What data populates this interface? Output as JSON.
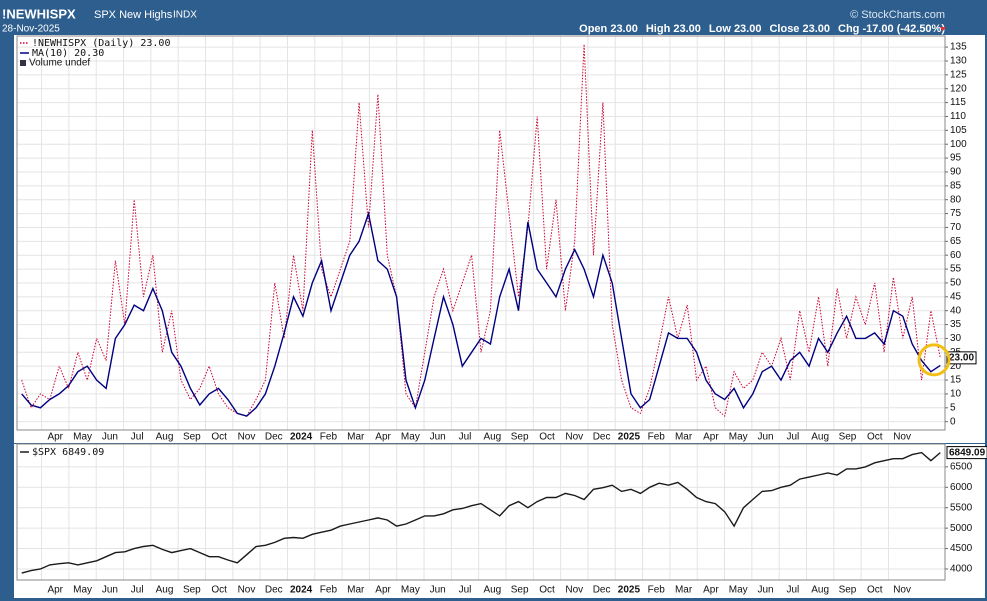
{
  "header": {
    "symbol": "!NEWHISPX",
    "name": "SPX New Highs",
    "exchange": "INDX",
    "date": "28-Nov-2025",
    "credit": "© StockCharts.com",
    "quote": [
      "Open 23.00",
      "High 23.00",
      "Low 23.00",
      "Close 23.00",
      "Chg -17.00 (-42.50%)"
    ]
  },
  "chart_data": [
    {
      "type": "line",
      "xtick_labels": [
        "Apr",
        "May",
        "Jun",
        "Jul",
        "Aug",
        "Sep",
        "Oct",
        "Nov",
        "Dec",
        "2024",
        "Feb",
        "Mar",
        "Apr",
        "May",
        "Jun",
        "Jul",
        "Aug",
        "Sep",
        "Oct",
        "Nov",
        "Dec",
        "2025",
        "Feb",
        "Mar",
        "Apr",
        "May",
        "Jun",
        "Jul",
        "Aug",
        "Sep",
        "Oct",
        "Nov"
      ],
      "ylim": [
        -3,
        139
      ],
      "yticks": [
        0,
        5,
        10,
        15,
        20,
        25,
        30,
        35,
        40,
        45,
        50,
        55,
        60,
        65,
        70,
        75,
        80,
        85,
        90,
        95,
        100,
        105,
        110,
        115,
        120,
        125,
        130,
        135
      ],
      "grid": true,
      "legend_extra": "Volume undef",
      "last_value_label": "23.00",
      "series": [
        {
          "name": "!NEWHISPX (Daily) 23.00",
          "color": "#cc0033",
          "style": "dotted",
          "values": [
            15,
            5,
            10,
            8,
            20,
            12,
            25,
            15,
            30,
            22,
            58,
            35,
            80,
            45,
            60,
            25,
            40,
            15,
            8,
            12,
            20,
            10,
            5,
            3,
            2,
            8,
            15,
            50,
            30,
            60,
            40,
            105,
            55,
            45,
            55,
            65,
            115,
            70,
            118,
            60,
            45,
            10,
            5,
            25,
            45,
            55,
            40,
            50,
            60,
            25,
            40,
            105,
            75,
            45,
            70,
            110,
            55,
            80,
            40,
            65,
            136,
            60,
            115,
            35,
            15,
            5,
            3,
            12,
            28,
            45,
            30,
            42,
            15,
            20,
            5,
            2,
            18,
            12,
            15,
            25,
            20,
            30,
            15,
            40,
            25,
            45,
            20,
            48,
            30,
            45,
            35,
            50,
            25,
            52,
            30,
            45,
            15,
            40,
            23
          ]
        },
        {
          "name": "MA(10) 20.30",
          "color": "#000080",
          "style": "solid",
          "values": [
            10,
            6,
            5,
            8,
            10,
            13,
            18,
            20,
            15,
            12,
            30,
            35,
            42,
            40,
            48,
            40,
            25,
            20,
            12,
            6,
            10,
            12,
            8,
            3,
            2,
            5,
            10,
            20,
            32,
            45,
            38,
            50,
            58,
            40,
            50,
            60,
            65,
            75,
            58,
            55,
            45,
            15,
            5,
            15,
            30,
            45,
            35,
            20,
            25,
            30,
            28,
            45,
            55,
            40,
            72,
            55,
            50,
            45,
            55,
            62,
            55,
            45,
            60,
            50,
            30,
            10,
            5,
            8,
            20,
            32,
            30,
            30,
            25,
            15,
            10,
            8,
            12,
            5,
            10,
            18,
            20,
            15,
            22,
            25,
            20,
            30,
            25,
            32,
            38,
            30,
            30,
            32,
            28,
            40,
            38,
            28,
            22,
            18,
            20.3
          ]
        }
      ]
    },
    {
      "type": "line",
      "xtick_labels": [
        "Apr",
        "May",
        "Jun",
        "Jul",
        "Aug",
        "Sep",
        "Oct",
        "Nov",
        "Dec",
        "2024",
        "Feb",
        "Mar",
        "Apr",
        "May",
        "Jun",
        "Jul",
        "Aug",
        "Sep",
        "Oct",
        "Nov",
        "Dec",
        "2025",
        "Feb",
        "Mar",
        "Apr",
        "May",
        "Jun",
        "Jul",
        "Aug",
        "Sep",
        "Oct",
        "Nov"
      ],
      "ylim": [
        3730,
        7060
      ],
      "yticks": [
        4000,
        4500,
        5000,
        5500,
        6000,
        6500
      ],
      "grid": true,
      "last_value_label": "6849.09",
      "series": [
        {
          "name": "$SPX 6849.09",
          "color": "#1a1a1a",
          "style": "solid",
          "values": [
            3900,
            3960,
            4000,
            4100,
            4130,
            4150,
            4100,
            4150,
            4200,
            4300,
            4400,
            4420,
            4500,
            4550,
            4580,
            4480,
            4400,
            4450,
            4500,
            4400,
            4300,
            4300,
            4220,
            4150,
            4350,
            4550,
            4580,
            4650,
            4750,
            4770,
            4750,
            4850,
            4900,
            4950,
            5050,
            5100,
            5150,
            5200,
            5250,
            5200,
            5050,
            5100,
            5200,
            5300,
            5300,
            5350,
            5450,
            5480,
            5550,
            5600,
            5450,
            5300,
            5550,
            5650,
            5500,
            5650,
            5750,
            5750,
            5850,
            5800,
            5700,
            5950,
            5990,
            6050,
            5900,
            5950,
            5850,
            6000,
            6100,
            6050,
            6120,
            5950,
            5750,
            5650,
            5600,
            5400,
            5050,
            5500,
            5700,
            5900,
            5920,
            6000,
            6050,
            6200,
            6250,
            6300,
            6350,
            6300,
            6450,
            6450,
            6500,
            6600,
            6650,
            6700,
            6700,
            6800,
            6850,
            6650,
            6849.09
          ]
        }
      ]
    }
  ]
}
